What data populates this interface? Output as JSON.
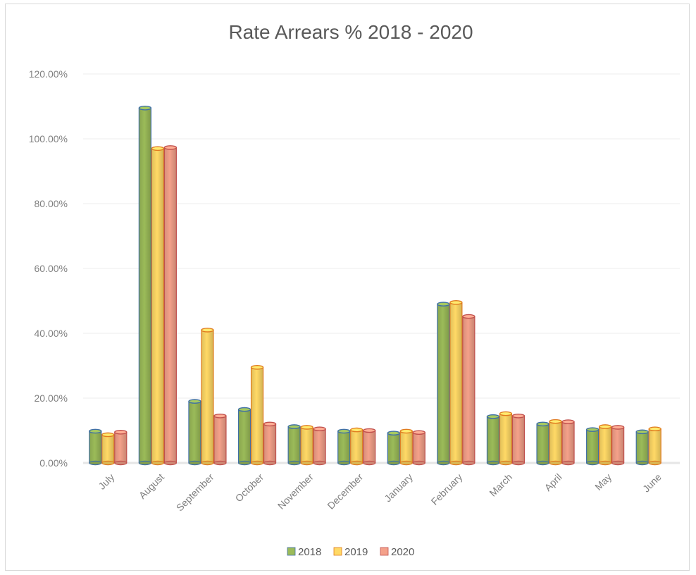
{
  "chart_data": {
    "type": "bar",
    "title": "Rate Arrears % 2018 - 2020",
    "xlabel": "",
    "ylabel": "",
    "categories": [
      "July",
      "August",
      "September",
      "October",
      "November",
      "December",
      "January",
      "February",
      "March",
      "April",
      "May",
      "June"
    ],
    "series": [
      {
        "name": "2018",
        "color": "#9bbb59",
        "values": [
          9.8,
          109.5,
          19.0,
          16.5,
          11.2,
          9.8,
          9.2,
          49.0,
          14.3,
          12.0,
          10.3,
          9.6
        ]
      },
      {
        "name": "2019",
        "color": "#ffd966",
        "values": [
          8.7,
          97.0,
          41.0,
          29.5,
          11.0,
          10.2,
          9.8,
          49.5,
          15.2,
          12.8,
          11.2,
          10.5
        ]
      },
      {
        "name": "2020",
        "color": "#f4a18a",
        "values": [
          9.5,
          97.3,
          14.5,
          12.0,
          10.5,
          10.0,
          9.4,
          45.2,
          14.5,
          12.7,
          11.0,
          null
        ]
      }
    ],
    "ylim": [
      0,
      120
    ],
    "yticks": [
      "0.00%",
      "20.00%",
      "40.00%",
      "60.00%",
      "80.00%",
      "100.00%",
      "120.00%"
    ],
    "ytick_values": [
      0,
      20,
      40,
      60,
      80,
      100,
      120
    ],
    "grid": true,
    "legend": "bottom"
  }
}
